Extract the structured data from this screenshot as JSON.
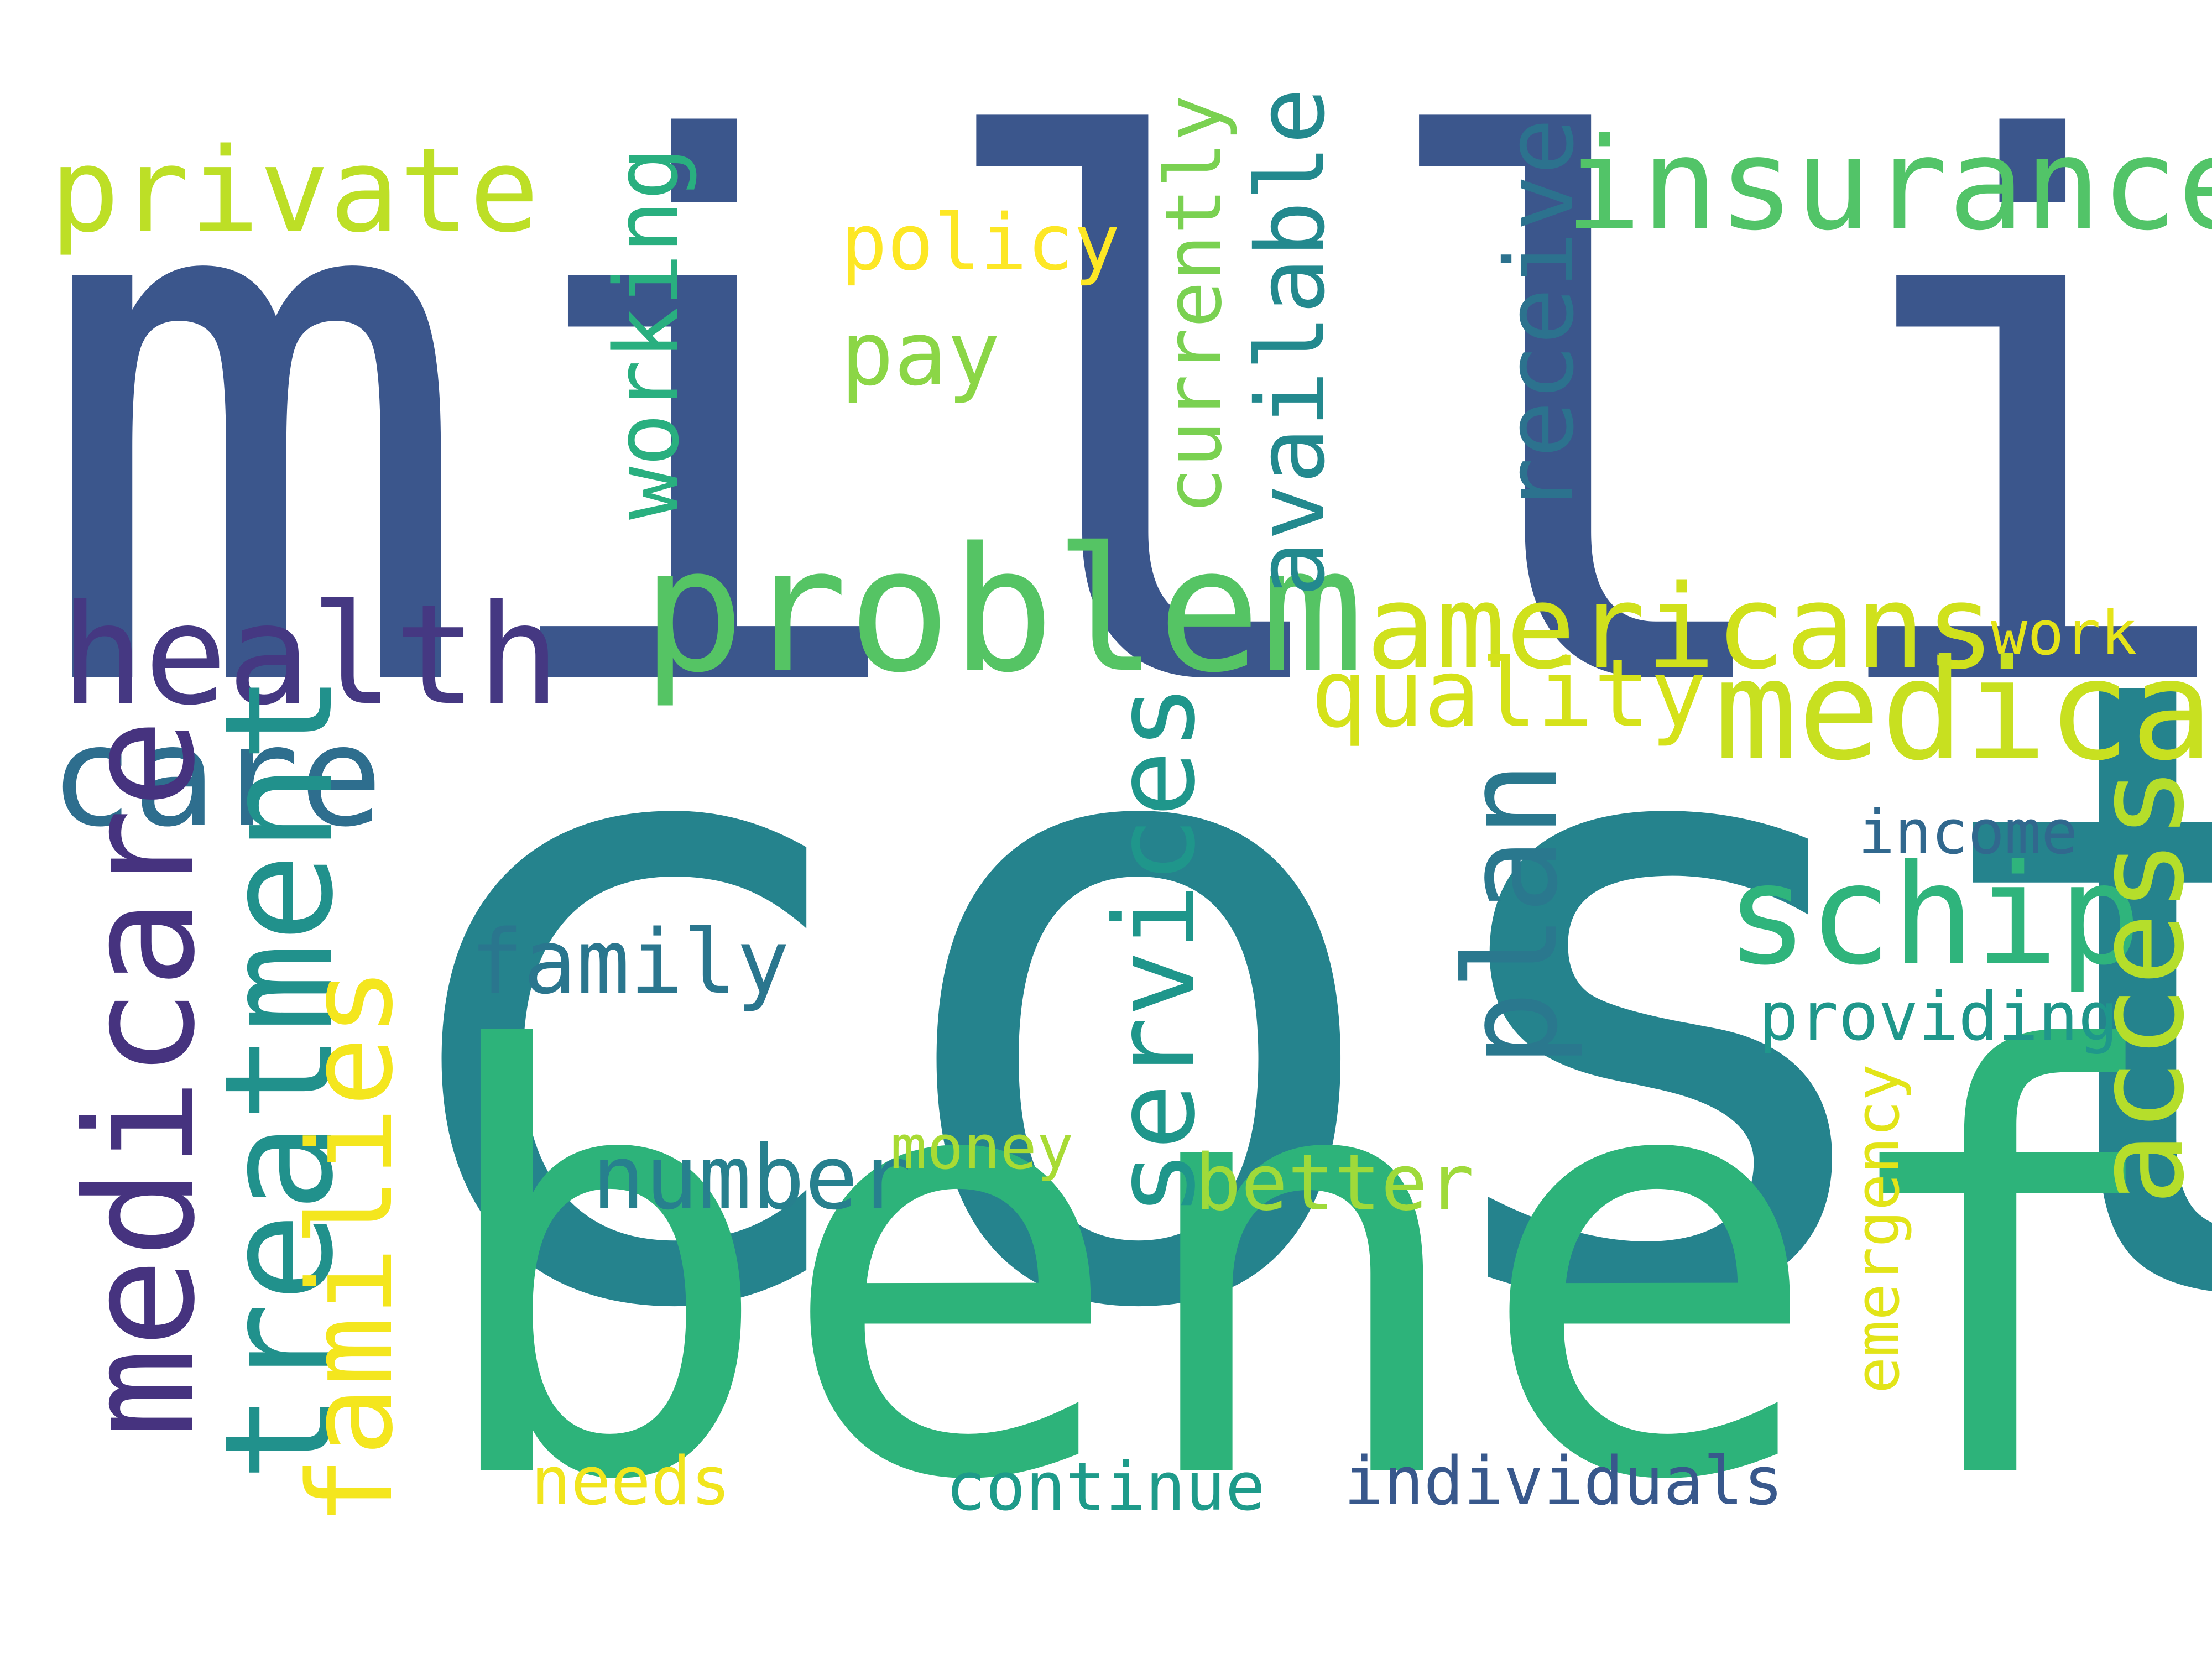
{
  "words": [
    {
      "text": "million",
      "color": "#3b568c"
    },
    {
      "text": "cost",
      "color": "#25838d"
    },
    {
      "text": "benefit",
      "color": "#2db37a"
    },
    {
      "text": "problem",
      "color": "#55c464"
    },
    {
      "text": "insurance",
      "color": "#52c468"
    },
    {
      "text": "private",
      "color": "#bddf26"
    },
    {
      "text": "policy",
      "color": "#fde725"
    },
    {
      "text": "pay",
      "color": "#8bd646"
    },
    {
      "text": "working",
      "color": "#29af7f"
    },
    {
      "text": "currently",
      "color": "#7ad151"
    },
    {
      "text": "available",
      "color": "#23898e"
    },
    {
      "text": "receive",
      "color": "#2c728e"
    },
    {
      "text": "health",
      "color": "#453882"
    },
    {
      "text": "care",
      "color": "#2e6e8e"
    },
    {
      "text": "medicare",
      "color": "#46337f"
    },
    {
      "text": "treatment",
      "color": "#21918c"
    },
    {
      "text": "families",
      "color": "#f4e61e"
    },
    {
      "text": "americans",
      "color": "#d0e11c"
    },
    {
      "text": "quality",
      "color": "#d5e21a"
    },
    {
      "text": "work",
      "color": "#e5e419"
    },
    {
      "text": "medical",
      "color": "#c8e020"
    },
    {
      "text": "schip",
      "color": "#2fb47c"
    },
    {
      "text": "access",
      "color": "#b5de2b"
    },
    {
      "text": "income",
      "color": "#31688e"
    },
    {
      "text": "providing",
      "color": "#1f978b"
    },
    {
      "text": "plan",
      "color": "#2a788e"
    },
    {
      "text": "services",
      "color": "#1f968b"
    },
    {
      "text": "family",
      "color": "#2a768e"
    },
    {
      "text": "number",
      "color": "#27808e"
    },
    {
      "text": "money",
      "color": "#a8db34"
    },
    {
      "text": "better",
      "color": "#9fda3a"
    },
    {
      "text": "emergency",
      "color": "#e2e418"
    },
    {
      "text": "needs",
      "color": "#f1e51d"
    },
    {
      "text": "continue",
      "color": "#1e9b8a"
    },
    {
      "text": "individuals",
      "color": "#38588c"
    }
  ]
}
